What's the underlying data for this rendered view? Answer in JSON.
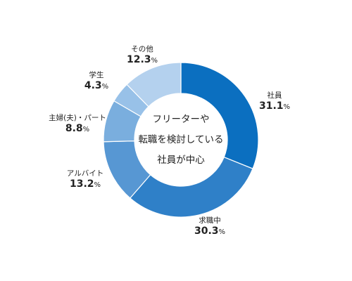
{
  "chart_data": {
    "type": "pie",
    "title": "",
    "center_text": [
      "フリーターや",
      "転職を検討している",
      "社員が中心"
    ],
    "percent_unit": "%",
    "slices": [
      {
        "label": "社員",
        "value": 31.1,
        "value_text": "31.1",
        "color": "#0b6fc0"
      },
      {
        "label": "求職中",
        "value": 30.3,
        "value_text": "30.3",
        "color": "#2f80c8"
      },
      {
        "label": "アルバイト",
        "value": 13.2,
        "value_text": "13.2",
        "color": "#5797d3"
      },
      {
        "label": "主婦(夫)・パート",
        "value": 8.8,
        "value_text": "8.8",
        "color": "#7aaede"
      },
      {
        "label": "学生",
        "value": 4.3,
        "value_text": "4.3",
        "color": "#98c1e8"
      },
      {
        "label": "その他",
        "value": 12.3,
        "value_text": "12.3",
        "color": "#b4d1ee"
      }
    ]
  }
}
